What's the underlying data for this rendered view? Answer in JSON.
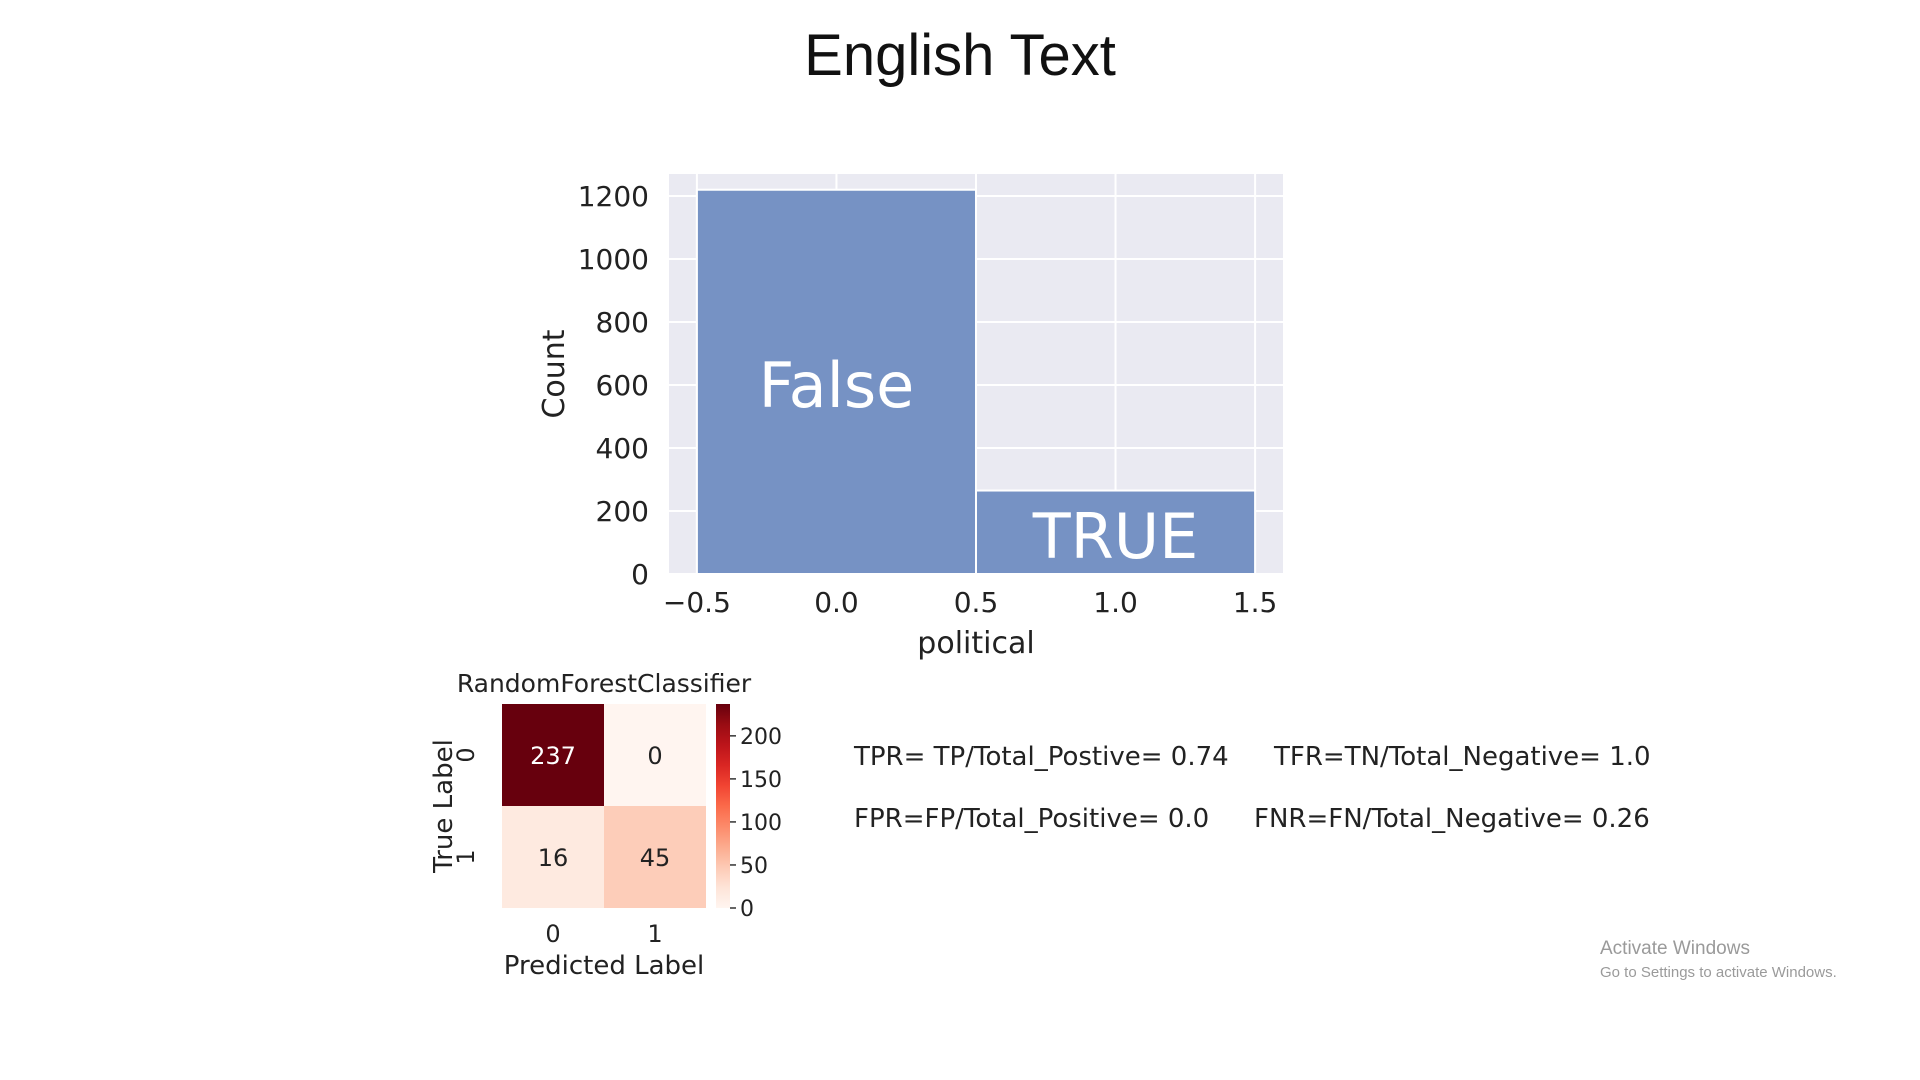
{
  "slide": {
    "title": "English Text"
  },
  "chart_data": [
    {
      "type": "bar",
      "xlabel": "political",
      "ylabel": "Count",
      "xlim": [
        -0.6,
        1.6
      ],
      "ylim": [
        0,
        1270
      ],
      "xticks": [
        -0.5,
        0.0,
        0.5,
        1.0,
        1.5
      ],
      "xtick_labels": [
        "−0.5",
        "0.0",
        "0.5",
        "1.0",
        "1.5"
      ],
      "yticks": [
        0,
        200,
        400,
        600,
        800,
        1000,
        1200
      ],
      "grid": true,
      "bars": [
        {
          "x0": -0.5,
          "x1": 0.5,
          "value": 1220,
          "label": "False"
        },
        {
          "x0": 0.5,
          "x1": 1.5,
          "value": 265,
          "label": "TRUE"
        }
      ],
      "colors": {
        "bar": "#7692c4",
        "background": "#eaeaf2",
        "grid": "#ffffff",
        "bar_label": "#ffffff"
      }
    },
    {
      "type": "heatmap",
      "title": "RandomForestClassifier",
      "xlabel": "Predicted Label",
      "ylabel": "True Label",
      "x_categories": [
        "0",
        "1"
      ],
      "y_categories": [
        "0",
        "1"
      ],
      "values": [
        [
          237,
          0
        ],
        [
          16,
          45
        ]
      ],
      "colorbar": {
        "min": 0,
        "max": 237,
        "ticks": [
          0,
          50,
          100,
          150,
          200
        ]
      },
      "colormap": "Reds"
    }
  ],
  "metrics": {
    "tpr": "TPR= TP/Total_Postive= 0.74",
    "tfr": "TFR=TN/Total_Negative= 1.0",
    "fpr": "FPR=FP/Total_Positive= 0.0",
    "fnr": "FNR=FN/Total_Negative= 0.26"
  },
  "watermark": {
    "line1": "Activate Windows",
    "line2": "Go to Settings to activate Windows."
  }
}
